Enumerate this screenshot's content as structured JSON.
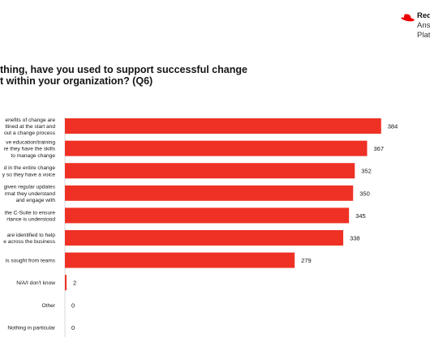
{
  "brand": {
    "lines": [
      "Red",
      "Ans",
      "Plat"
    ],
    "accent": "#ee0000"
  },
  "title": {
    "line1": "thing, have you used to support successful change",
    "line2": "t within your organization? (Q6)"
  },
  "chart_data": {
    "type": "bar",
    "orientation": "horizontal",
    "bar_color": "#ee3124",
    "categories": [
      [
        "enefits of change are",
        "tlined at the start and",
        "out a change process"
      ],
      [
        "ve education/training",
        "re they have the skills",
        "to manage change"
      ],
      [
        "d in the entire change",
        "y so they have a voice"
      ],
      [
        "given regular updates",
        "rmat they understand",
        "and engage with"
      ],
      [
        "the C-Suite to ensure",
        "rtance is understood"
      ],
      [
        "are identified to help",
        "e across the business"
      ],
      [
        "is sought from teams"
      ],
      [
        "N/A/I don't know"
      ],
      [
        "Other"
      ],
      [
        "Nothing in particular"
      ]
    ],
    "values": [
      384,
      367,
      352,
      350,
      345,
      338,
      279,
      2,
      0,
      0
    ],
    "data_labels": [
      "384",
      "367",
      "352",
      "350",
      "345",
      "338",
      "279",
      "2",
      "0",
      "0"
    ],
    "xlim": [
      0,
      400
    ],
    "grid": false,
    "legend": "none"
  }
}
